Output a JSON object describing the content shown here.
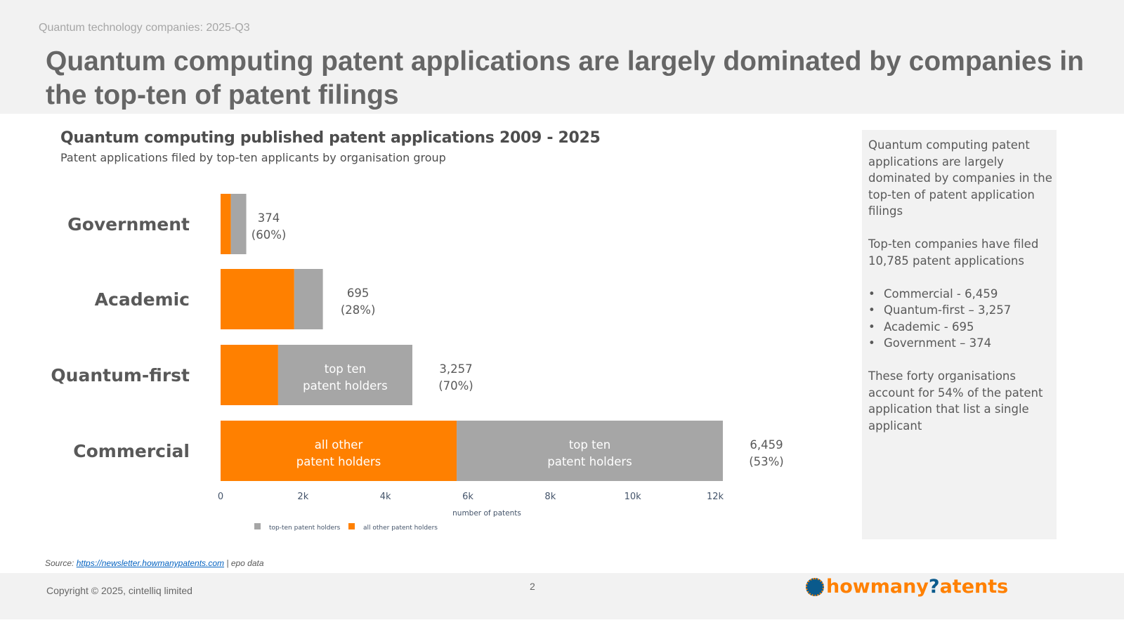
{
  "header": {
    "kicker": "Quantum technology companies: 2025-Q3",
    "title": "Quantum computing patent applications are largely dominated by companies in the top-ten of patent filings"
  },
  "chart_data": {
    "type": "bar",
    "orientation": "horizontal",
    "stacked": true,
    "title": "Quantum computing published patent applications 2009 - 2025",
    "subtitle": "Patent applications filed by top-ten applicants by organisation group",
    "categories": [
      "Government",
      "Academic",
      "Quantum-first",
      "Commercial"
    ],
    "series": [
      {
        "name": "all other patent holders",
        "color": "#ff8000",
        "values": [
          249,
          1787,
          1396,
          5728
        ]
      },
      {
        "name": "top-ten patent holders",
        "color": "#a6a6a6",
        "values": [
          374,
          695,
          3257,
          6459
        ]
      }
    ],
    "data_labels": [
      [
        "374",
        "(60%)"
      ],
      [
        "695",
        "(28%)"
      ],
      [
        "3,257",
        "(70%)"
      ],
      [
        "6,459",
        "(53%)"
      ]
    ],
    "in_bar_labels": [
      {
        "category": "Quantum-first",
        "series": "top-ten patent holders",
        "lines": [
          "top ten",
          "patent holders"
        ]
      },
      {
        "category": "Commercial",
        "series": "all other patent holders",
        "lines": [
          "all other",
          "patent holders"
        ]
      },
      {
        "category": "Commercial",
        "series": "top-ten patent holders",
        "lines": [
          "top ten",
          "patent holders"
        ]
      }
    ],
    "xticks": [
      "0",
      "2k",
      "4k",
      "6k",
      "8k",
      "10k",
      "12k"
    ],
    "xtick_values": [
      0,
      2000,
      4000,
      6000,
      8000,
      10000,
      12000
    ],
    "xlabel": "number of patents",
    "xlim": [
      0,
      12270
    ],
    "legend": {
      "placement": "bottom",
      "entries": [
        "top-ten patent holders",
        "all other patent holders"
      ]
    },
    "grid": false
  },
  "panel": {
    "p1": "Quantum computing patent applications are largely dominated by companies in the top-ten of patent application filings",
    "p2": "Top-ten companies have filed 10,785 patent applications",
    "bullets": [
      "Commercial  - 6,459",
      "Quantum-first – 3,257",
      "Academic - 695",
      "Government – 374"
    ],
    "p3": "These forty organisations account for 54% of the patent application that list a single applicant"
  },
  "source": {
    "prefix": "Source: ",
    "link": "https://newsletter.howmanypatents.com",
    "suffix": " | epo data"
  },
  "footer": {
    "copyright": "Copyright © 2025, cintelliq limited",
    "page": "2",
    "logo_text_a": "howmany",
    "logo_q": "?",
    "logo_text_b": "atents"
  }
}
